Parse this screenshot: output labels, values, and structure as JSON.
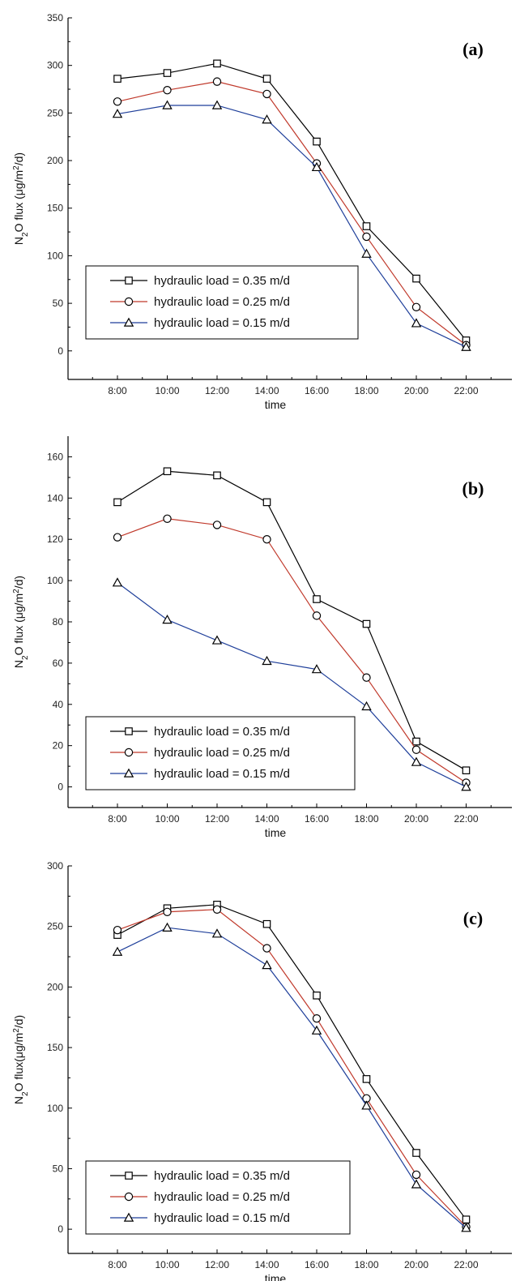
{
  "chart_data": [
    {
      "type": "line",
      "title": "",
      "panel_label": "(a)",
      "categories": [
        "8:00",
        "10:00",
        "12:00",
        "14:00",
        "16:00",
        "18:00",
        "20:00",
        "22:00"
      ],
      "xlabel": "time",
      "ylabel": "N2O flux (μg/m2/d)",
      "ylim": [
        -30,
        350
      ],
      "yticks": [
        0,
        50,
        100,
        150,
        200,
        250,
        300,
        350
      ],
      "legend_position": "bottom-left",
      "series": [
        {
          "name": "hydraulic load = 0.35 m/d",
          "marker": "square",
          "color": "#000000",
          "values": [
            286,
            292,
            302,
            286,
            220,
            131,
            76,
            11
          ]
        },
        {
          "name": "hydraulic load = 0.25 m/d",
          "marker": "circle",
          "color": "#c0392b",
          "values": [
            262,
            274,
            283,
            270,
            197,
            120,
            46,
            6
          ]
        },
        {
          "name": "hydraulic load = 0.15 m/d",
          "marker": "triangle",
          "color": "#1f3f9a",
          "values": [
            249,
            258,
            258,
            243,
            193,
            102,
            29,
            4
          ]
        }
      ]
    },
    {
      "type": "line",
      "title": "",
      "panel_label": "(b)",
      "categories": [
        "8:00",
        "10:00",
        "12:00",
        "14:00",
        "16:00",
        "18:00",
        "20:00",
        "22:00"
      ],
      "xlabel": "time",
      "ylabel": "N2O flux (μg/m2/d)",
      "ylim": [
        -10,
        170
      ],
      "yticks": [
        0,
        20,
        40,
        60,
        80,
        100,
        120,
        140,
        160
      ],
      "legend_position": "bottom-left",
      "series": [
        {
          "name": "hydraulic load = 0.35 m/d",
          "marker": "square",
          "color": "#000000",
          "values": [
            138,
            153,
            151,
            138,
            91,
            79,
            22,
            8
          ]
        },
        {
          "name": "hydraulic load = 0.25 m/d",
          "marker": "circle",
          "color": "#c0392b",
          "values": [
            121,
            130,
            127,
            120,
            83,
            53,
            18,
            2
          ]
        },
        {
          "name": "hydraulic load = 0.15 m/d",
          "marker": "triangle",
          "color": "#1f3f9a",
          "values": [
            99,
            81,
            71,
            61,
            57,
            39,
            12,
            0
          ]
        }
      ]
    },
    {
      "type": "line",
      "title": "",
      "panel_label": "(c)",
      "categories": [
        "8:00",
        "10:00",
        "12:00",
        "14:00",
        "16:00",
        "18:00",
        "20:00",
        "22:00"
      ],
      "xlabel": "time",
      "ylabel": "N2O flux(μg/m2/d)",
      "ylim": [
        -20,
        300
      ],
      "yticks": [
        0,
        50,
        100,
        150,
        200,
        250,
        300
      ],
      "legend_position": "bottom-left",
      "series": [
        {
          "name": "hydraulic load = 0.35 m/d",
          "marker": "square",
          "color": "#000000",
          "values": [
            243,
            265,
            268,
            252,
            193,
            124,
            63,
            8
          ]
        },
        {
          "name": "hydraulic load = 0.25 m/d",
          "marker": "circle",
          "color": "#c0392b",
          "values": [
            247,
            262,
            264,
            232,
            174,
            108,
            45,
            2
          ]
        },
        {
          "name": "hydraulic load = 0.15 m/d",
          "marker": "triangle",
          "color": "#1f3f9a",
          "values": [
            229,
            249,
            244,
            218,
            164,
            102,
            37,
            1
          ]
        }
      ]
    }
  ]
}
